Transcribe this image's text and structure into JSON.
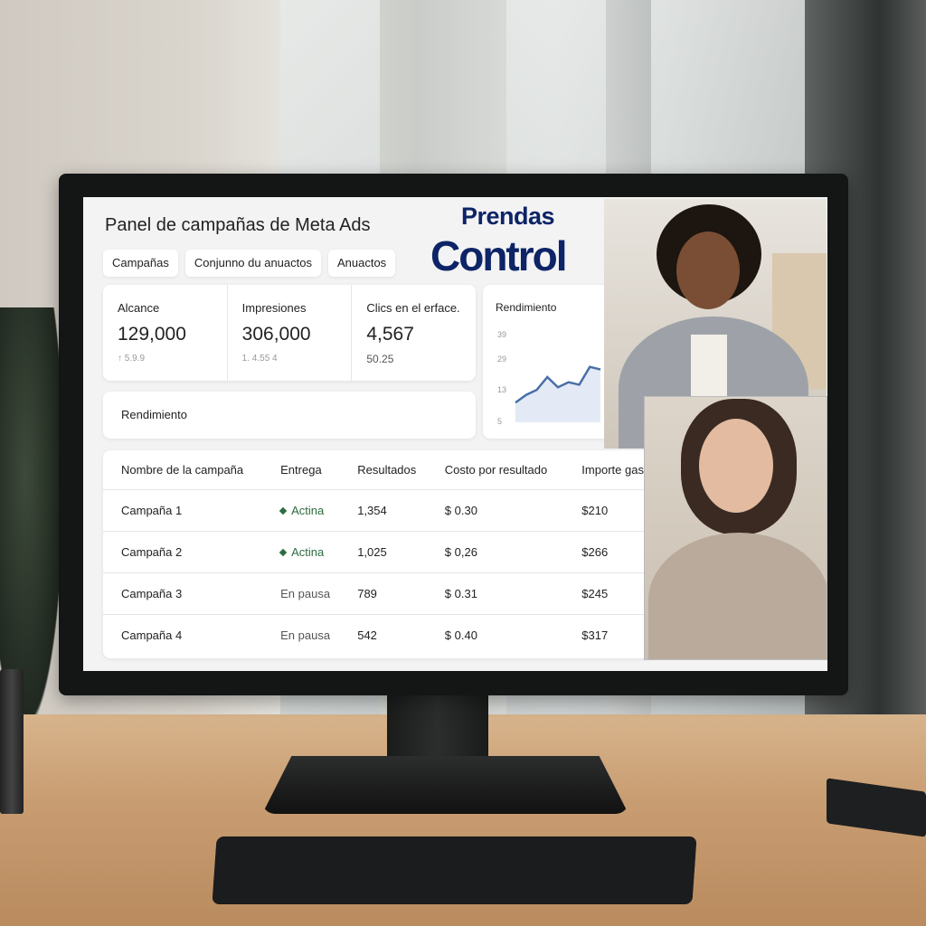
{
  "dashboard": {
    "title": "Panel de campañas de Meta Ads",
    "logo": {
      "line1": "Prendas",
      "line2": "Control"
    },
    "tabs": [
      "Campañas",
      "Conjunno du anuactos",
      "Anuactos"
    ],
    "metrics": [
      {
        "label": "Alcance",
        "value": "129,000",
        "sub": "↑ 5.9.9"
      },
      {
        "label": "Impresiones",
        "value": "306,000",
        "sub": "1. 4.55 4"
      },
      {
        "label": "Clics en el erface.",
        "value": "4,567",
        "sub": "50.25"
      }
    ],
    "performance_label": "Rendimiento",
    "chart": {
      "title": "Rendimiento",
      "type": "area",
      "y_ticks": [
        "39",
        "29",
        "13",
        "5"
      ],
      "values": [
        12,
        15,
        17,
        22,
        18,
        20,
        19,
        26,
        25
      ],
      "color": "#4a6fa8"
    },
    "table": {
      "columns": [
        "Nombre de la campaña",
        "Entrega",
        "Resultados",
        "Costo por resultado",
        "Importe gas"
      ],
      "rows": [
        {
          "name": "Campaña 1",
          "status": "Actina",
          "active": true,
          "results": "1,354",
          "cost": "$ 0.30",
          "spent": "$210"
        },
        {
          "name": "Campaña 2",
          "status": "Actina",
          "active": true,
          "results": "1,025",
          "cost": "$ 0,26",
          "spent": "$266"
        },
        {
          "name": "Campaña 3",
          "status": "En pausa",
          "active": false,
          "results": "789",
          "cost": "$ 0.31",
          "spent": "$245"
        },
        {
          "name": "Campaña 4",
          "status": "En pausa",
          "active": false,
          "results": "542",
          "cost": "$ 0.40",
          "spent": "$317"
        }
      ]
    }
  }
}
